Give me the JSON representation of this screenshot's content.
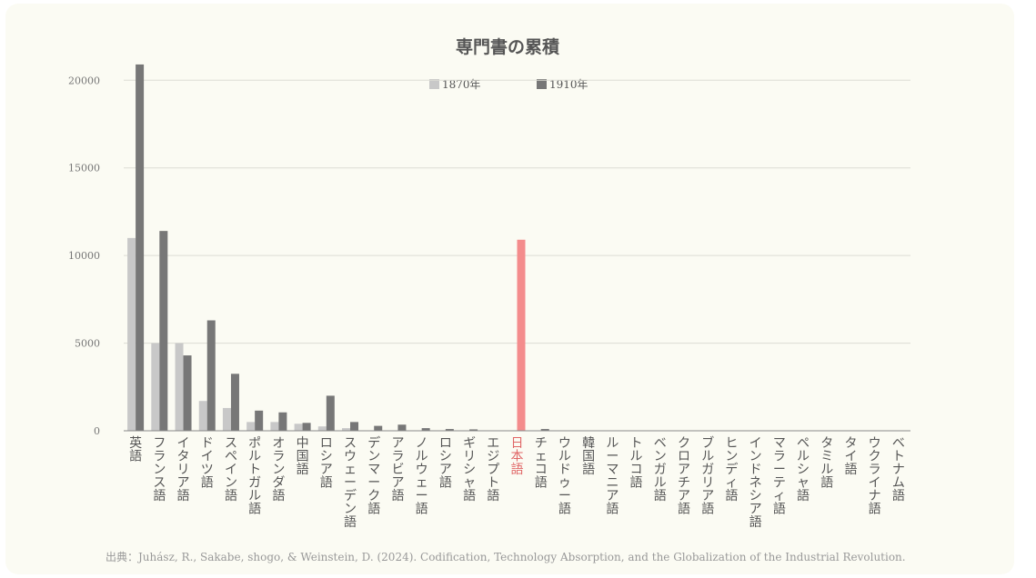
{
  "chart_data": {
    "type": "bar",
    "title": "専門書の累積",
    "source": "出典：Juhász, R., Sakabe, shogo, & Weinstein, D. (2024). Codification, Technology Absorption, and the Globalization of the Industrial Revolution.",
    "legend_position": "top-center",
    "grid": true,
    "ylim": [
      0,
      21000
    ],
    "yticks": [
      0,
      5000,
      10000,
      15000,
      20000
    ],
    "categories": [
      "英語",
      "フランス語",
      "イタリア語",
      "ドイツ語",
      "スペイン語",
      "ポルトガル語",
      "オランダ語",
      "中国語",
      "ロシア語",
      "スウェーデン語",
      "デンマーク語",
      "アラビア語",
      "ノルウェー語",
      "ロシア語",
      "ギリシャ語",
      "エジプト語",
      "日本語",
      "チェコ語",
      "ウルドゥー語",
      "韓国語",
      "ルーマニア語",
      "トルコ語",
      "ベンガル語",
      "クロアチア語",
      "ブルガリア語",
      "ヒンディ語",
      "インドネシア語",
      "マラーティ語",
      "ペルシャ語",
      "タミル語",
      "タイ語",
      "ウクライナ語",
      "ベトナム語"
    ],
    "highlight_category": "日本語",
    "highlight_color": "#f48c8c",
    "series": [
      {
        "name": "1870年",
        "color": "#c8c8c8",
        "values": [
          11000,
          5000,
          5000,
          1700,
          1300,
          500,
          500,
          400,
          250,
          150,
          0,
          0,
          0,
          0,
          0,
          0,
          0,
          0,
          0,
          0,
          0,
          0,
          0,
          0,
          0,
          0,
          0,
          0,
          0,
          0,
          0,
          0,
          0
        ]
      },
      {
        "name": "1910年",
        "color": "#777777",
        "values": [
          20900,
          11400,
          4300,
          6300,
          3250,
          1150,
          1050,
          450,
          2000,
          500,
          280,
          350,
          150,
          100,
          80,
          0,
          10900,
          100,
          0,
          0,
          0,
          0,
          0,
          0,
          0,
          0,
          0,
          0,
          0,
          0,
          0,
          0,
          0
        ]
      }
    ]
  }
}
